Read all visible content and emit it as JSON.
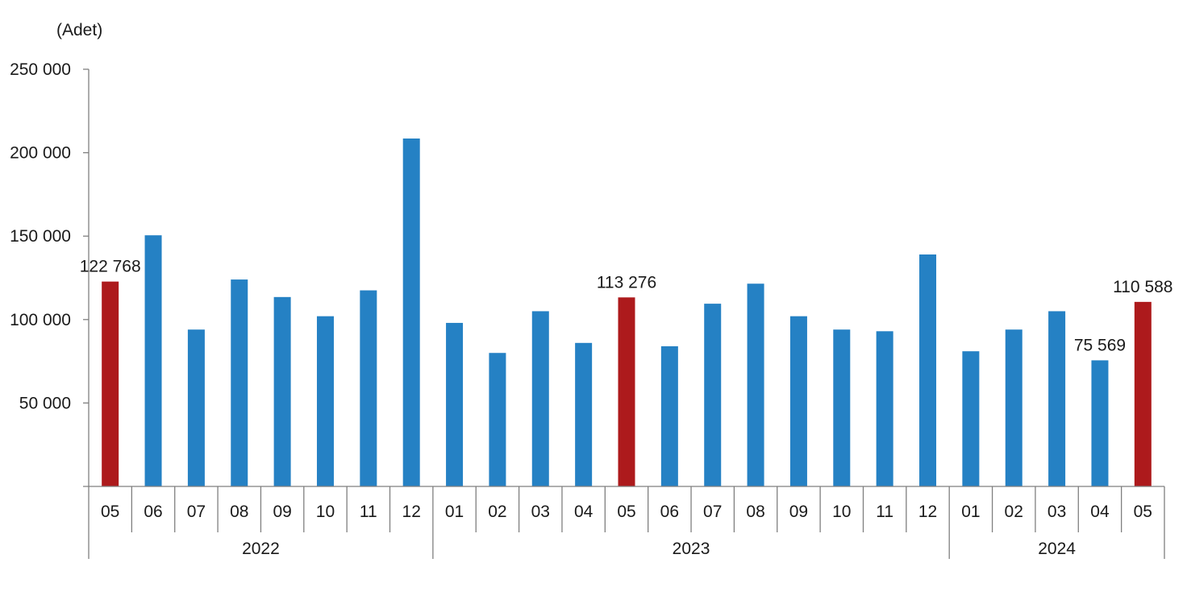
{
  "chart_data": {
    "type": "bar",
    "unit_label": "(Adet)",
    "title": "",
    "xlabel": "",
    "ylabel": "",
    "ylim": [
      0,
      250000
    ],
    "yticks": [
      {
        "value": 50000,
        "label": "50 000"
      },
      {
        "value": 100000,
        "label": "100 000"
      },
      {
        "value": 150000,
        "label": "150 000"
      },
      {
        "value": 200000,
        "label": "200 000"
      },
      {
        "value": 250000,
        "label": "250 000"
      }
    ],
    "grid": false,
    "legend": "none",
    "colors": {
      "default": "#2581c4",
      "highlight": "#ad1a1c"
    },
    "groups": [
      {
        "year": "2022",
        "count": 8
      },
      {
        "year": "2023",
        "count": 12
      },
      {
        "year": "2024",
        "count": 5
      }
    ],
    "bars": [
      {
        "month": "05",
        "year": "2022",
        "value": 122768,
        "highlight": true,
        "label": "122 768"
      },
      {
        "month": "06",
        "year": "2022",
        "value": 150500
      },
      {
        "month": "07",
        "year": "2022",
        "value": 94000
      },
      {
        "month": "08",
        "year": "2022",
        "value": 124000
      },
      {
        "month": "09",
        "year": "2022",
        "value": 113500
      },
      {
        "month": "10",
        "year": "2022",
        "value": 102000
      },
      {
        "month": "11",
        "year": "2022",
        "value": 117500
      },
      {
        "month": "12",
        "year": "2022",
        "value": 208500
      },
      {
        "month": "01",
        "year": "2023",
        "value": 98000
      },
      {
        "month": "02",
        "year": "2023",
        "value": 80000
      },
      {
        "month": "03",
        "year": "2023",
        "value": 105000
      },
      {
        "month": "04",
        "year": "2023",
        "value": 86000
      },
      {
        "month": "05",
        "year": "2023",
        "value": 113276,
        "highlight": true,
        "label": "113 276"
      },
      {
        "month": "06",
        "year": "2023",
        "value": 84000
      },
      {
        "month": "07",
        "year": "2023",
        "value": 109500
      },
      {
        "month": "08",
        "year": "2023",
        "value": 121500
      },
      {
        "month": "09",
        "year": "2023",
        "value": 102000
      },
      {
        "month": "10",
        "year": "2023",
        "value": 94000
      },
      {
        "month": "11",
        "year": "2023",
        "value": 93000
      },
      {
        "month": "12",
        "year": "2023",
        "value": 139000
      },
      {
        "month": "01",
        "year": "2024",
        "value": 81000
      },
      {
        "month": "02",
        "year": "2024",
        "value": 94000
      },
      {
        "month": "03",
        "year": "2024",
        "value": 105000
      },
      {
        "month": "04",
        "year": "2024",
        "value": 75569,
        "label": "75 569"
      },
      {
        "month": "05",
        "year": "2024",
        "value": 110588,
        "highlight": true,
        "label": "110 588"
      }
    ]
  }
}
